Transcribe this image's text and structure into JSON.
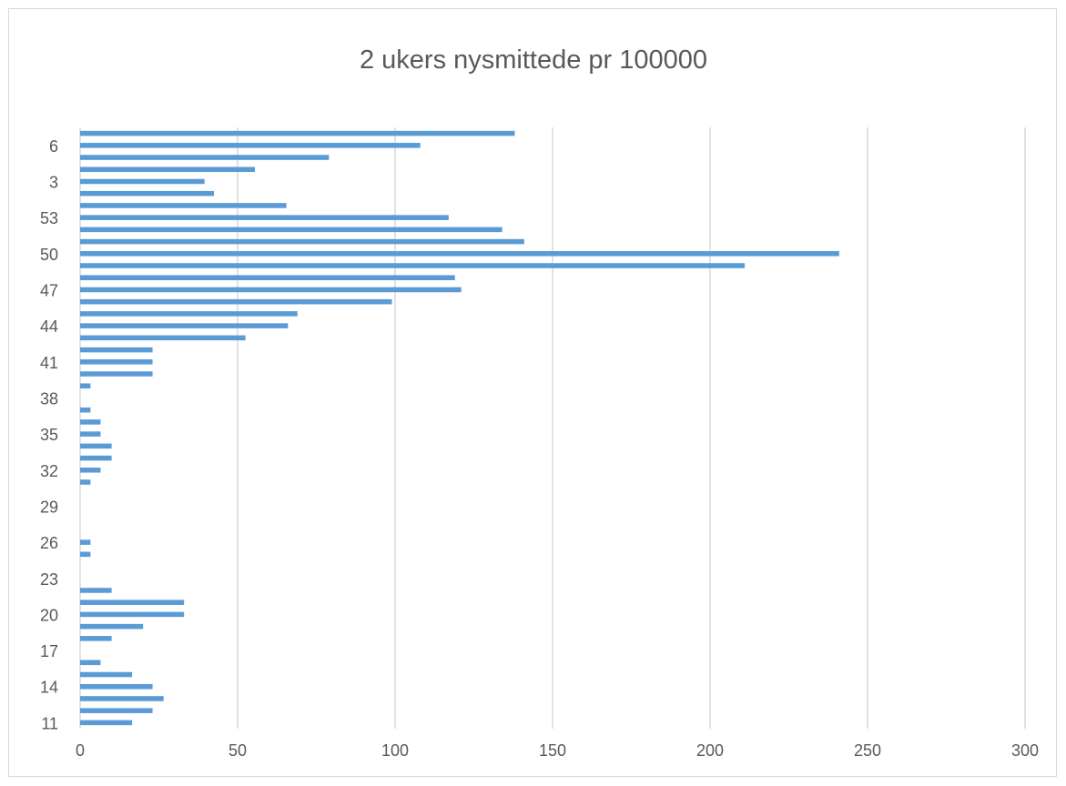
{
  "chart_data": {
    "type": "bar",
    "orientation": "horizontal",
    "title": "2 ukers nysmittede pr 100000",
    "xlabel": "",
    "ylabel": "",
    "xlim": [
      0,
      300
    ],
    "x_ticks": [
      0,
      50,
      100,
      150,
      200,
      250,
      300
    ],
    "grid": "vertical",
    "legend": "none",
    "bar_color": "#5b9bd5",
    "categories": [
      "11",
      "12",
      "13",
      "14",
      "15",
      "16",
      "17",
      "18",
      "19",
      "20",
      "21",
      "22",
      "23",
      "24",
      "25",
      "26",
      "27",
      "28",
      "29",
      "30",
      "31",
      "32",
      "33",
      "34",
      "35",
      "36",
      "37",
      "38",
      "39",
      "40",
      "41",
      "42",
      "43",
      "44",
      "45",
      "46",
      "47",
      "48",
      "49",
      "50",
      "51",
      "52",
      "53",
      "1",
      "2",
      "3",
      "4",
      "5",
      "6",
      "7"
    ],
    "shown_category_labels": [
      "11",
      "14",
      "17",
      "20",
      "23",
      "26",
      "29",
      "32",
      "35",
      "38",
      "41",
      "44",
      "47",
      "50",
      "53",
      "3",
      "6"
    ],
    "values": [
      16.5,
      23,
      26.5,
      23,
      16.5,
      6.5,
      0,
      10,
      20,
      33,
      33,
      10,
      0,
      0,
      3.3,
      3.3,
      0,
      0,
      0,
      0,
      3.3,
      6.5,
      10,
      10,
      6.5,
      6.5,
      3.3,
      0,
      3.3,
      23,
      23,
      23,
      52.5,
      66,
      69,
      99,
      121,
      119,
      211,
      241,
      141,
      134,
      117,
      65.5,
      42.5,
      39.5,
      55.5,
      79,
      108,
      138
    ]
  }
}
